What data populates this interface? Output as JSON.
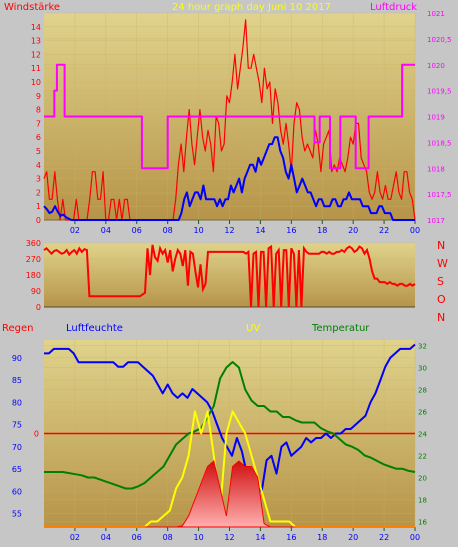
{
  "header": {
    "title": "24 hour graph day   Juni 10 2017",
    "left_label": "Windstärke",
    "right_label": "Luftdruck"
  },
  "colors": {
    "background": "#c6c6c6",
    "plot_top": "#e0d38c",
    "plot_bottom": "#b69449",
    "wind_gust": "#ff0000",
    "wind_avg": "#0000ff",
    "pressure": "#ff00ff",
    "direction": "#ff0000",
    "humidity": "#0000ff",
    "temperature": "#008000",
    "uv": "#ffff00",
    "rain": "#ff0000"
  },
  "labels": {
    "regen": "Regen",
    "luftfeuchte": "Luftfeuchte",
    "uv": "UV",
    "temperatur": "Temperatur"
  },
  "chart_data": [
    {
      "type": "line",
      "id": "wind",
      "ylabel": "Windstärke",
      "y2label": "Luftdruck",
      "xticks": [
        "02",
        "04",
        "06",
        "08",
        "10",
        "12",
        "14",
        "16",
        "18",
        "20",
        "22",
        "00"
      ],
      "yticks": [
        "0",
        "1",
        "2",
        "3",
        "4",
        "5",
        "6",
        "7",
        "8",
        "9",
        "10",
        "11",
        "12",
        "13",
        "14"
      ],
      "y2ticks": [
        "1017",
        "1017,5",
        "1018",
        "1018,5",
        "1019",
        "1019,5",
        "1020",
        "1020,5",
        "1021"
      ],
      "ylim": [
        0,
        15
      ],
      "y2lim": [
        1017,
        1021
      ],
      "series": [
        {
          "name": "gust",
          "role": "wind_gust",
          "values": [
            3,
            3.5,
            1.5,
            1.5,
            3.5,
            1.5,
            0,
            1.5,
            0,
            0,
            0,
            0,
            1.5,
            0,
            0,
            0,
            0,
            1.5,
            3.5,
            3.5,
            1.5,
            1.5,
            3.5,
            0,
            0,
            1.5,
            1.5,
            0,
            1.5,
            0,
            1.5,
            1.5,
            0,
            0,
            0,
            0,
            0,
            0,
            0,
            0,
            0,
            0,
            0,
            0,
            0,
            0,
            0,
            0,
            0,
            1.5,
            4,
            5.5,
            3.5,
            6,
            8,
            5.5,
            4,
            6,
            8,
            6,
            5,
            6.5,
            5.5,
            3.5,
            7.5,
            7,
            5,
            5.5,
            9,
            8.5,
            10,
            12,
            9.5,
            11,
            12.5,
            14.5,
            11,
            11,
            12,
            11,
            10,
            8.5,
            11,
            9.5,
            10,
            7,
            9.5,
            8.5,
            6.5,
            5.5,
            7,
            5.5,
            3.5,
            7,
            8.5,
            8,
            6,
            5,
            5.5,
            5,
            4.5,
            6.5,
            5.5,
            3.5,
            5.5,
            6,
            6.5,
            3.5,
            4,
            3.5,
            4.5,
            4,
            3.5,
            4.5,
            6,
            5.5,
            7,
            7,
            4.5,
            4,
            3.5,
            2,
            1.5,
            2,
            3.5,
            2,
            1.5,
            2.5,
            1.5,
            1.5,
            2.5,
            3.5,
            2,
            1.5,
            3.5,
            3.5,
            2,
            1.5,
            0
          ]
        },
        {
          "name": "avg",
          "role": "wind_avg",
          "values": [
            1,
            0.8,
            0.5,
            0.6,
            1,
            0.6,
            0.3,
            0.4,
            0.2,
            0.1,
            0,
            0,
            0,
            0,
            0,
            0,
            0,
            0,
            0,
            0,
            0,
            0,
            0,
            0,
            0,
            0,
            0,
            0,
            0,
            0,
            0,
            0,
            0,
            0,
            0,
            0,
            0,
            0,
            0,
            0,
            0,
            0,
            0,
            0,
            0,
            0,
            0,
            0,
            0,
            0,
            0.5,
            1.5,
            2,
            1,
            1.5,
            2,
            2,
            1.5,
            2.5,
            1.5,
            1.5,
            1.5,
            1.5,
            1,
            1.5,
            1,
            1.5,
            1.5,
            2.5,
            2,
            2.5,
            3,
            2,
            3,
            3.5,
            4,
            4,
            3.5,
            4.5,
            4,
            4.5,
            5,
            5.5,
            5.5,
            6,
            6,
            5,
            4.5,
            3.5,
            3,
            4,
            3,
            2,
            2.5,
            3,
            2.5,
            2,
            2,
            1.5,
            1,
            1.5,
            1.5,
            1,
            1,
            1,
            1.5,
            1.5,
            1,
            1,
            1.5,
            1.5,
            2,
            1.5,
            1.5,
            1.5,
            1.5,
            1,
            1,
            1,
            0.5,
            0.5,
            0.5,
            1,
            1,
            0.5,
            0.5,
            0.5,
            0,
            0,
            0,
            0,
            0,
            0,
            0,
            0,
            0
          ]
        },
        {
          "name": "pressure",
          "role": "pressure",
          "axis": "y2",
          "values": [
            1019,
            1019,
            1019,
            1019,
            1019.5,
            1020,
            1020,
            1020,
            1019,
            1019,
            1019,
            1019,
            1019,
            1019,
            1019,
            1019,
            1019,
            1019,
            1019,
            1019,
            1019,
            1019,
            1019,
            1019,
            1019,
            1019,
            1019,
            1019,
            1019,
            1019,
            1019,
            1019,
            1019,
            1019,
            1019,
            1019,
            1019,
            1019,
            1018,
            1018,
            1018,
            1018,
            1018,
            1018,
            1018,
            1018,
            1018,
            1018,
            1019,
            1019,
            1019,
            1019,
            1019,
            1019,
            1019,
            1019,
            1019,
            1019,
            1019,
            1019,
            1019,
            1019,
            1019,
            1019,
            1019,
            1019,
            1019,
            1019,
            1019,
            1019,
            1019,
            1019,
            1019,
            1019,
            1019,
            1019,
            1019,
            1019,
            1019,
            1019,
            1019,
            1019,
            1019,
            1019,
            1019,
            1019,
            1019,
            1019,
            1019,
            1019,
            1019,
            1019,
            1019,
            1019,
            1019,
            1019,
            1019,
            1019,
            1019,
            1019,
            1019,
            1019,
            1019,
            1019,
            1019,
            1018.5,
            1018.5,
            1019,
            1019,
            1019,
            1019,
            1018,
            1018,
            1018,
            1018,
            1019,
            1019,
            1019,
            1019,
            1019,
            1019,
            1018,
            1018,
            1018,
            1018,
            1018,
            1019,
            1019,
            1019,
            1019,
            1019,
            1019,
            1019,
            1019,
            1019,
            1019,
            1019,
            1019,
            1019,
            1020,
            1020,
            1020,
            1020,
            1020
          ]
        }
      ]
    },
    {
      "type": "line",
      "id": "direction",
      "yticks": [
        "0",
        "90",
        "180",
        "270",
        "360"
      ],
      "right_labels": [
        "N",
        "W",
        "S",
        "O",
        "N"
      ],
      "ylim": [
        0,
        360
      ],
      "series": [
        {
          "name": "direction",
          "role": "direction",
          "values": [
            320,
            330,
            315,
            300,
            315,
            320,
            310,
            300,
            305,
            320,
            295,
            310,
            320,
            300,
            330,
            310,
            325,
            320,
            60,
            60,
            60,
            60,
            60,
            60,
            60,
            60,
            60,
            60,
            60,
            60,
            60,
            60,
            60,
            60,
            60,
            60,
            60,
            60,
            60,
            70,
            80,
            330,
            180,
            350,
            280,
            260,
            330,
            300,
            320,
            250,
            320,
            200,
            270,
            320,
            300,
            230,
            320,
            120,
            310,
            300,
            200,
            110,
            240,
            100,
            130,
            310,
            310,
            310,
            310,
            310,
            310,
            310,
            310,
            310,
            310,
            310,
            310,
            310,
            310,
            310,
            300,
            310,
            0,
            300,
            310,
            0,
            310,
            310,
            0,
            330,
            340,
            0,
            300,
            320,
            0,
            320,
            320,
            0,
            330,
            300,
            0,
            320,
            0,
            330,
            310,
            300,
            300,
            300,
            300,
            300,
            310,
            310,
            300,
            310,
            300,
            300,
            310,
            310,
            320,
            310,
            330,
            340,
            330,
            310,
            320,
            340,
            330,
            300,
            320,
            270,
            200,
            160,
            160,
            140,
            140,
            140,
            130,
            140,
            130,
            130,
            120,
            130,
            130,
            120,
            120,
            130,
            120,
            130
          ]
        }
      ]
    },
    {
      "type": "line",
      "id": "combo",
      "yticks_humidity": [
        "55",
        "60",
        "65",
        "70",
        "75",
        "80",
        "85",
        "90"
      ],
      "yticks_temp": [
        "16",
        "18",
        "20",
        "22",
        "24",
        "26",
        "28",
        "30",
        "32"
      ],
      "ylim_humidity": [
        52,
        94
      ],
      "ylim_temp": [
        15.5,
        32.5
      ],
      "rain_label": "0",
      "series": [
        {
          "name": "humidity",
          "role": "humidity",
          "axis": "humidity",
          "values": [
            91,
            91,
            92,
            92,
            92,
            92,
            91,
            89,
            89,
            89,
            89,
            89,
            89,
            89,
            89,
            88,
            88,
            89,
            89,
            89,
            88,
            87,
            86,
            84,
            82,
            84,
            82,
            81,
            82,
            81,
            83,
            82,
            81,
            80,
            78,
            75,
            72,
            70,
            68,
            72,
            69,
            64,
            58,
            61,
            60,
            67,
            68,
            64,
            70,
            71,
            68,
            69,
            70,
            72,
            71,
            72,
            72,
            73,
            72,
            73,
            73,
            74,
            74,
            75,
            76,
            77,
            80,
            82,
            85,
            88,
            90,
            91,
            92,
            92,
            92,
            93
          ]
        },
        {
          "name": "temperature",
          "role": "temperature",
          "axis": "temp",
          "values": [
            20.5,
            20.5,
            20.5,
            20.5,
            20.4,
            20.3,
            20.2,
            20,
            20,
            19.8,
            19.6,
            19.4,
            19.2,
            19,
            19,
            19.2,
            19.5,
            20,
            20.5,
            21,
            22,
            23,
            23.5,
            24,
            24.2,
            24.5,
            25.5,
            26.5,
            29,
            30,
            30.5,
            30,
            28,
            27,
            26.5,
            26.5,
            26,
            26,
            25.5,
            25.5,
            25.2,
            25,
            25,
            25,
            24.5,
            24.2,
            24,
            23.5,
            23,
            22.8,
            22.5,
            22,
            21.8,
            21.5,
            21.2,
            21,
            20.8,
            20.8,
            20.6,
            20.5
          ]
        },
        {
          "name": "uv",
          "role": "uv",
          "axis": "temp",
          "values": [
            15.5,
            15.5,
            15.5,
            15.5,
            15.5,
            15.5,
            15.5,
            15.5,
            15.5,
            15.5,
            15.5,
            15.5,
            15.5,
            15.5,
            15.5,
            15.5,
            15.5,
            16,
            16,
            16.5,
            17,
            19,
            20,
            22,
            26,
            24,
            26,
            22,
            17,
            24,
            26,
            25,
            24,
            22,
            20,
            18,
            16,
            16,
            16,
            16,
            15.5,
            15.5,
            15.5,
            15.5,
            15.5,
            15.5,
            15.5,
            15.5,
            15.5,
            15.5,
            15.5,
            15.5,
            15.5,
            15.5,
            15.5,
            15.5,
            15.5,
            15.5,
            15.5,
            15.5
          ]
        },
        {
          "name": "rain",
          "role": "rain",
          "axis": "temp",
          "values": [
            15.5,
            15.5,
            15.5,
            15.5,
            15.5,
            15.5,
            15.5,
            15.5,
            15.5,
            15.5,
            15.5,
            15.5,
            15.5,
            15.5,
            15.5,
            15.5,
            15.5,
            15.5,
            15.5,
            15.5,
            15.5,
            15.5,
            15.6,
            16.5,
            18,
            19.5,
            21,
            21.5,
            19,
            16.5,
            21,
            21.5,
            21,
            21,
            20,
            15.8,
            15.5,
            15.5,
            15.5,
            15.5,
            15.5,
            15.5,
            15.5,
            15.5,
            15.5,
            15.5,
            15.5,
            15.5,
            15.5,
            15.5,
            15.5,
            15.5,
            15.5,
            15.5,
            15.5,
            15.5,
            15.5,
            15.5,
            15.5,
            15.5
          ]
        }
      ]
    }
  ]
}
